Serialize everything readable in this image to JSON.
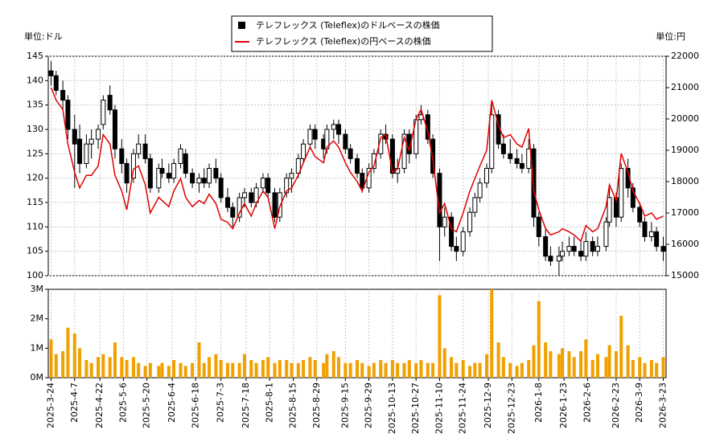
{
  "chart_data": [
    {
      "type": "candlestick",
      "ylabel": "単位:ドル",
      "y2label": "単位:円",
      "xlim": [
        "2025-3-24",
        "2026-3-23"
      ],
      "ylim": [
        100,
        145
      ],
      "yticks": [
        100,
        105,
        110,
        115,
        120,
        125,
        130,
        135,
        140,
        145
      ],
      "y2lim": [
        15000,
        22000
      ],
      "y2ticks": [
        15000,
        16000,
        17000,
        18000,
        19000,
        20000,
        21000,
        22000
      ],
      "grid": true,
      "legend": "top",
      "x": [
        "2025-3-24",
        "2025-3-27",
        "2025-3-31",
        "2025-4-3",
        "2025-4-7",
        "2025-4-10",
        "2025-4-14",
        "2025-4-17",
        "2025-4-21",
        "2025-4-24",
        "2025-4-28",
        "2025-5-1",
        "2025-5-5",
        "2025-5-8",
        "2025-5-12",
        "2025-5-15",
        "2025-5-19",
        "2025-5-22",
        "2025-5-27",
        "2025-5-29",
        "2025-6-2",
        "2025-6-5",
        "2025-6-9",
        "2025-6-12",
        "2025-6-16",
        "2025-6-20",
        "2025-6-23",
        "2025-6-26",
        "2025-6-30",
        "2025-7-3",
        "2025-7-7",
        "2025-7-10",
        "2025-7-14",
        "2025-7-17",
        "2025-7-21",
        "2025-7-24",
        "2025-7-28",
        "2025-7-31",
        "2025-8-4",
        "2025-8-7",
        "2025-8-11",
        "2025-8-14",
        "2025-8-18",
        "2025-8-21",
        "2025-8-25",
        "2025-8-28",
        "2025-9-2",
        "2025-9-4",
        "2025-9-8",
        "2025-9-11",
        "2025-9-15",
        "2025-9-18",
        "2025-9-22",
        "2025-9-25",
        "2025-9-29",
        "2025-10-2",
        "2025-10-6",
        "2025-10-9",
        "2025-10-13",
        "2025-10-16",
        "2025-10-20",
        "2025-10-23",
        "2025-10-27",
        "2025-10-30",
        "2025-11-3",
        "2025-11-6",
        "2025-11-10",
        "2025-11-13",
        "2025-11-17",
        "2025-11-20",
        "2025-11-24",
        "2025-11-28",
        "2025-12-1",
        "2025-12-4",
        "2025-12-8",
        "2025-12-11",
        "2025-12-15",
        "2025-12-18",
        "2025-12-22",
        "2025-12-26",
        "2025-12-29",
        "2026-1-2",
        "2026-1-5",
        "2026-1-8",
        "2026-1-12",
        "2026-1-15",
        "2026-1-20",
        "2026-1-22",
        "2026-1-26",
        "2026-1-29",
        "2026-2-2",
        "2026-2-5",
        "2026-2-9",
        "2026-2-12",
        "2026-2-17",
        "2026-2-19",
        "2026-2-23",
        "2026-2-26",
        "2026-3-2",
        "2026-3-5",
        "2026-3-9",
        "2026-3-12",
        "2026-3-16",
        "2026-3-19",
        "2026-3-23"
      ],
      "series": [
        {
          "name": "テレフレックス (Teleflex)のドルベースの株価",
          "color": "#000000",
          "open": [
            142,
            141,
            138,
            136,
            130,
            128,
            123,
            127,
            128,
            131,
            137,
            134,
            126,
            123,
            120,
            125,
            127,
            124,
            118,
            122,
            121,
            120,
            123,
            125,
            121,
            119,
            120,
            119,
            122,
            120,
            116,
            114,
            112,
            116,
            117,
            115,
            118,
            120,
            117,
            112,
            117,
            120,
            121,
            124,
            127,
            130,
            128,
            126,
            130,
            131,
            129,
            126,
            124,
            121,
            118,
            122,
            125,
            129,
            128,
            121,
            122,
            129,
            125,
            132,
            133,
            128,
            121,
            110,
            112,
            106,
            105,
            109,
            113,
            116,
            119,
            122,
            133,
            127,
            125,
            124,
            123,
            122,
            126,
            112,
            108,
            104,
            103,
            104,
            105,
            106,
            105,
            104,
            107,
            105,
            106,
            111,
            116,
            112,
            122,
            118,
            114,
            111,
            108,
            109,
            106
          ],
          "high": [
            144,
            142,
            140,
            137,
            133,
            131,
            129,
            130,
            131,
            137,
            139,
            135,
            128,
            124,
            126,
            129,
            129,
            125,
            123,
            124,
            123,
            124,
            127,
            126,
            122,
            121,
            122,
            123,
            124,
            121,
            118,
            115,
            117,
            118,
            118,
            119,
            121,
            121,
            118,
            118,
            121,
            122,
            125,
            128,
            131,
            131,
            129,
            131,
            132,
            132,
            130,
            127,
            125,
            122,
            123,
            126,
            130,
            131,
            129,
            124,
            130,
            130,
            133,
            135,
            134,
            129,
            122,
            114,
            113,
            108,
            110,
            114,
            117,
            120,
            123,
            136,
            134,
            129,
            128,
            126,
            125,
            128,
            127,
            113,
            110,
            106,
            106,
            107,
            108,
            108,
            107,
            109,
            108,
            108,
            112,
            118,
            117,
            123,
            124,
            119,
            115,
            112,
            111,
            110,
            108
          ],
          "low": [
            139,
            137,
            134,
            128,
            118,
            121,
            122,
            124,
            126,
            130,
            133,
            124,
            121,
            117,
            119,
            124,
            123,
            117,
            117,
            120,
            119,
            119,
            122,
            120,
            118,
            117,
            118,
            118,
            119,
            115,
            113,
            110,
            111,
            114,
            114,
            114,
            117,
            116,
            111,
            111,
            116,
            117,
            120,
            123,
            126,
            126,
            124,
            125,
            128,
            127,
            125,
            123,
            120,
            117,
            117,
            121,
            124,
            127,
            120,
            119,
            121,
            123,
            124,
            131,
            127,
            120,
            103,
            108,
            105,
            103,
            104,
            108,
            112,
            115,
            118,
            121,
            126,
            124,
            123,
            122,
            121,
            121,
            110,
            106,
            103,
            102,
            100,
            103,
            104,
            104,
            103,
            103,
            104,
            104,
            105,
            110,
            110,
            111,
            116,
            113,
            110,
            107,
            107,
            105,
            103
          ],
          "close": [
            141,
            138,
            136,
            130,
            127,
            123,
            127,
            128,
            130,
            136,
            134,
            126,
            123,
            119,
            125,
            127,
            124,
            118,
            122,
            121,
            120,
            123,
            126,
            121,
            119,
            120,
            119,
            122,
            120,
            116,
            114,
            112,
            116,
            117,
            115,
            118,
            120,
            117,
            112,
            117,
            120,
            121,
            124,
            127,
            130,
            128,
            126,
            130,
            131,
            129,
            126,
            124,
            121,
            118,
            122,
            125,
            129,
            128,
            121,
            122,
            129,
            125,
            132,
            133,
            128,
            121,
            110,
            112,
            106,
            105,
            109,
            113,
            116,
            119,
            122,
            133,
            127,
            125,
            124,
            123,
            122,
            126,
            112,
            108,
            104,
            103,
            104,
            105,
            106,
            105,
            104,
            107,
            105,
            106,
            111,
            116,
            112,
            122,
            118,
            114,
            111,
            108,
            109,
            106,
            105
          ]
        },
        {
          "name": "テレフレックス (Teleflex)の円ベースの株価",
          "color": "#e00000",
          "axis": "y2",
          "values": [
            21000,
            20600,
            20300,
            19200,
            18300,
            17800,
            18200,
            18200,
            18500,
            19500,
            19200,
            18200,
            17700,
            17100,
            18400,
            18500,
            17900,
            17000,
            17500,
            17400,
            17200,
            17700,
            18100,
            17500,
            17200,
            17400,
            17300,
            17600,
            17300,
            16800,
            16700,
            16500,
            17000,
            17300,
            16900,
            17300,
            17700,
            17500,
            16500,
            17200,
            17700,
            17800,
            18200,
            18600,
            19100,
            18800,
            18600,
            19100,
            19300,
            19100,
            18600,
            18300,
            18000,
            17700,
            18300,
            18500,
            19400,
            19500,
            18300,
            18400,
            19400,
            19000,
            20000,
            20300,
            19600,
            18700,
            17000,
            17300,
            16500,
            16400,
            17000,
            17700,
            18100,
            18500,
            19000,
            20600,
            19800,
            19400,
            19500,
            19200,
            19100,
            19700,
            17700,
            17100,
            16500,
            16300,
            16400,
            16500,
            16400,
            16300,
            16100,
            16600,
            16400,
            16500,
            17200,
            17900,
            17400,
            18900,
            18300,
            17700,
            17300,
            16900,
            17000,
            16800,
            16900
          ]
        }
      ]
    },
    {
      "type": "bar",
      "color": "#f0a000",
      "ylim": [
        0,
        3000000
      ],
      "yticks": [
        {
          "value": 0,
          "label": "0M"
        },
        {
          "value": 1000000,
          "label": "1M"
        },
        {
          "value": 2000000,
          "label": "2M"
        },
        {
          "value": 3000000,
          "label": "3M"
        }
      ],
      "xticks": [
        "2025-3-24",
        "2025-4-7",
        "2025-4-22",
        "2025-5-6",
        "2025-5-20",
        "2025-6-4",
        "2025-6-18",
        "2025-7-3",
        "2025-7-18",
        "2025-8-1",
        "2025-8-15",
        "2025-8-29",
        "2025-9-15",
        "2025-9-29",
        "2025-10-13",
        "2025-10-27",
        "2025-11-10",
        "2025-11-24",
        "2025-12-9",
        "2025-12-23",
        "2026-1-8",
        "2026-1-23",
        "2026-2-6",
        "2026-2-23",
        "2026-3-9",
        "2026-3-23"
      ],
      "values": [
        1300000,
        800000,
        900000,
        1700000,
        1500000,
        1000000,
        600000,
        500000,
        700000,
        800000,
        700000,
        1200000,
        700000,
        600000,
        700000,
        500000,
        400000,
        500000,
        400000,
        500000,
        400000,
        600000,
        500000,
        400000,
        500000,
        1200000,
        500000,
        700000,
        800000,
        600000,
        500000,
        500000,
        500000,
        800000,
        600000,
        500000,
        600000,
        700000,
        500000,
        600000,
        600000,
        500000,
        500000,
        600000,
        700000,
        600000,
        500000,
        800000,
        900000,
        700000,
        500000,
        500000,
        600000,
        500000,
        400000,
        500000,
        600000,
        500000,
        600000,
        500000,
        500000,
        600000,
        500000,
        600000,
        500000,
        500000,
        2800000,
        1000000,
        700000,
        500000,
        600000,
        400000,
        500000,
        500000,
        800000,
        3000000,
        1200000,
        700000,
        500000,
        400000,
        500000,
        600000,
        1100000,
        2600000,
        1200000,
        900000,
        800000,
        1000000,
        900000,
        700000,
        900000,
        1300000,
        600000,
        800000,
        700000,
        1100000,
        900000,
        2100000,
        1100000,
        600000,
        700000,
        500000,
        600000,
        500000,
        700000
      ]
    }
  ]
}
